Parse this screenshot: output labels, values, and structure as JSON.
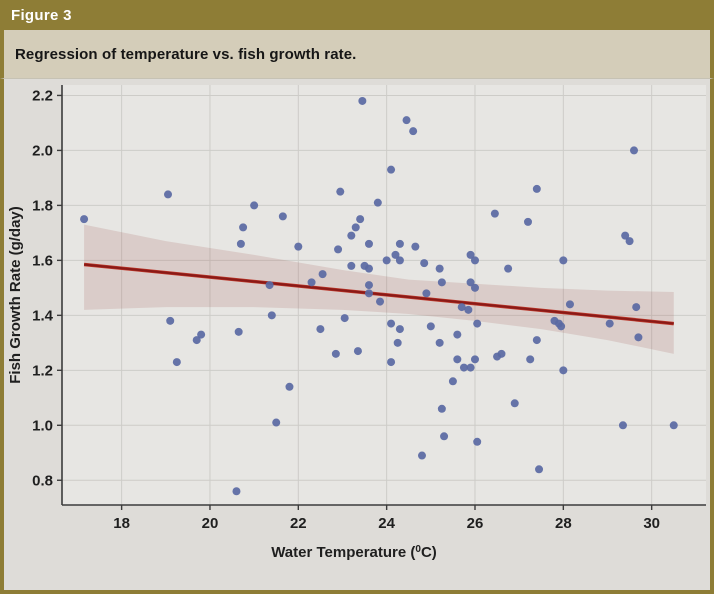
{
  "figure": {
    "label": "Figure 3",
    "caption": "Regression of temperature vs. fish growth rate."
  },
  "colors": {
    "header_bg": "#8e7d36",
    "border": "#8e7d36",
    "caption_bg": "#d4cdb9",
    "panel_bg": "#dedcd8",
    "plot_bg": "#e7e6e3",
    "grid": "#cdccc8",
    "axis": "#3c3c3c",
    "tick_text": "#1f1f1f",
    "point": "#5a69a3",
    "line": "#8a1a17",
    "line_highlight": "#c0392b",
    "band": "rgba(158,90,84,0.18)"
  },
  "chart_data": {
    "type": "scatter",
    "title": "Regression of temperature vs. fish growth rate.",
    "xlabel": "Water Temperature (⁰C)",
    "xlabel_prefix": "Water Temperature (",
    "xlabel_sup": "0",
    "xlabel_suffix": "C)",
    "ylabel": "Fish Growth Rate (g/day)",
    "xlim": [
      16.65,
      31.23
    ],
    "ylim": [
      0.71,
      2.238
    ],
    "xticks": [
      18,
      20,
      22,
      24,
      26,
      28,
      30
    ],
    "yticks": [
      0.8,
      1.0,
      1.2,
      1.4,
      1.6,
      1.8,
      2.0,
      2.2
    ],
    "grid": true,
    "legend": false,
    "regression_line": {
      "x1": 17.15,
      "y1": 1.585,
      "x2": 30.5,
      "y2": 1.37
    },
    "confidence_band": {
      "x": [
        17.15,
        19.0,
        21.0,
        23.0,
        24.5,
        26.0,
        27.5,
        29.0,
        30.5
      ],
      "top": [
        1.73,
        1.67,
        1.62,
        1.565,
        1.53,
        1.515,
        1.5,
        1.49,
        1.485
      ],
      "bottom": [
        1.42,
        1.43,
        1.43,
        1.42,
        1.405,
        1.38,
        1.35,
        1.31,
        1.26
      ]
    },
    "points": [
      [
        17.15,
        1.75
      ],
      [
        19.05,
        1.84
      ],
      [
        23.45,
        2.18
      ],
      [
        24.45,
        2.11
      ],
      [
        24.6,
        2.07
      ],
      [
        29.6,
        2.0
      ],
      [
        24.1,
        1.93
      ],
      [
        22.95,
        1.85
      ],
      [
        27.4,
        1.86
      ],
      [
        21.0,
        1.8
      ],
      [
        23.8,
        1.81
      ],
      [
        26.45,
        1.77
      ],
      [
        21.65,
        1.76
      ],
      [
        23.4,
        1.75
      ],
      [
        27.2,
        1.74
      ],
      [
        20.75,
        1.72
      ],
      [
        23.3,
        1.72
      ],
      [
        23.2,
        1.69
      ],
      [
        29.4,
        1.69
      ],
      [
        20.7,
        1.66
      ],
      [
        23.6,
        1.66
      ],
      [
        24.3,
        1.66
      ],
      [
        29.5,
        1.67
      ],
      [
        22.0,
        1.65
      ],
      [
        24.65,
        1.65
      ],
      [
        22.9,
        1.64
      ],
      [
        24.0,
        1.6
      ],
      [
        24.2,
        1.62
      ],
      [
        24.3,
        1.6
      ],
      [
        25.9,
        1.62
      ],
      [
        26.0,
        1.6
      ],
      [
        28.0,
        1.6
      ],
      [
        24.85,
        1.59
      ],
      [
        23.2,
        1.58
      ],
      [
        23.5,
        1.58
      ],
      [
        23.6,
        1.57
      ],
      [
        25.2,
        1.57
      ],
      [
        26.75,
        1.57
      ],
      [
        22.55,
        1.55
      ],
      [
        22.3,
        1.52
      ],
      [
        21.35,
        1.51
      ],
      [
        23.6,
        1.51
      ],
      [
        25.25,
        1.52
      ],
      [
        25.9,
        1.52
      ],
      [
        26.0,
        1.5
      ],
      [
        23.6,
        1.48
      ],
      [
        24.9,
        1.48
      ],
      [
        23.85,
        1.45
      ],
      [
        28.15,
        1.44
      ],
      [
        29.65,
        1.43
      ],
      [
        25.7,
        1.43
      ],
      [
        25.85,
        1.42
      ],
      [
        21.4,
        1.4
      ],
      [
        23.05,
        1.39
      ],
      [
        19.1,
        1.38
      ],
      [
        24.1,
        1.37
      ],
      [
        26.05,
        1.37
      ],
      [
        25.0,
        1.36
      ],
      [
        27.8,
        1.38
      ],
      [
        27.9,
        1.37
      ],
      [
        27.95,
        1.36
      ],
      [
        29.05,
        1.37
      ],
      [
        20.65,
        1.34
      ],
      [
        22.5,
        1.35
      ],
      [
        24.3,
        1.35
      ],
      [
        25.6,
        1.33
      ],
      [
        19.8,
        1.33
      ],
      [
        19.7,
        1.31
      ],
      [
        25.2,
        1.3
      ],
      [
        24.25,
        1.3
      ],
      [
        29.7,
        1.32
      ],
      [
        27.4,
        1.31
      ],
      [
        22.85,
        1.26
      ],
      [
        23.35,
        1.27
      ],
      [
        26.5,
        1.25
      ],
      [
        26.6,
        1.26
      ],
      [
        19.25,
        1.23
      ],
      [
        24.1,
        1.23
      ],
      [
        25.6,
        1.24
      ],
      [
        26.0,
        1.24
      ],
      [
        27.25,
        1.24
      ],
      [
        25.75,
        1.21
      ],
      [
        25.9,
        1.21
      ],
      [
        28.0,
        1.2
      ],
      [
        21.8,
        1.14
      ],
      [
        25.5,
        1.16
      ],
      [
        26.9,
        1.08
      ],
      [
        25.25,
        1.06
      ],
      [
        21.5,
        1.01
      ],
      [
        29.35,
        1.0
      ],
      [
        30.5,
        1.0
      ],
      [
        25.3,
        0.96
      ],
      [
        26.05,
        0.94
      ],
      [
        24.8,
        0.89
      ],
      [
        27.45,
        0.84
      ],
      [
        20.6,
        0.76
      ]
    ]
  }
}
